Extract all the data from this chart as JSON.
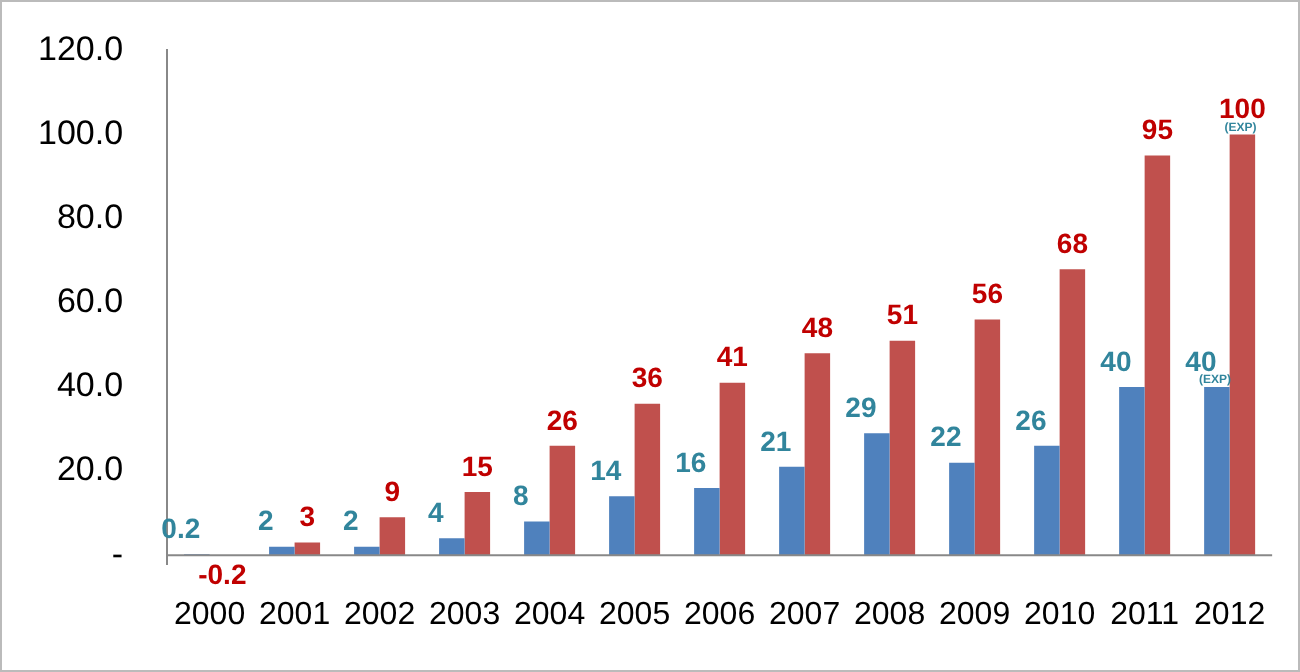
{
  "chart_data": {
    "type": "bar",
    "categories": [
      "2000",
      "2001",
      "2002",
      "2003",
      "2004",
      "2005",
      "2006",
      "2007",
      "2008",
      "2009",
      "2010",
      "2011",
      "2012"
    ],
    "series": [
      {
        "color": "#4f81bd",
        "values": [
          0.2,
          2,
          2,
          4,
          8,
          14,
          16,
          21,
          29,
          22,
          26,
          40,
          40
        ]
      },
      {
        "color": "#c0504d",
        "values": [
          -0.2,
          3,
          9,
          15,
          26,
          36,
          41,
          48,
          51,
          56,
          68,
          95,
          100
        ]
      }
    ],
    "ylim": [
      -2,
      120
    ],
    "yticks": [
      {
        "value": 0,
        "label": "-"
      },
      {
        "value": 20,
        "label": "20.0"
      },
      {
        "value": 40,
        "label": "40.0"
      },
      {
        "value": 60,
        "label": "60.0"
      },
      {
        "value": 80,
        "label": "80.0"
      },
      {
        "value": 100,
        "label": "100.0"
      },
      {
        "value": 120,
        "label": "120.0"
      }
    ],
    "data_labels": true,
    "annotations": [
      {
        "text": "(EXP)",
        "x": "2012",
        "y": 100
      },
      {
        "text": "(EXP)",
        "x": "2012",
        "y": 40
      }
    ],
    "grid": false,
    "legend": false
  }
}
